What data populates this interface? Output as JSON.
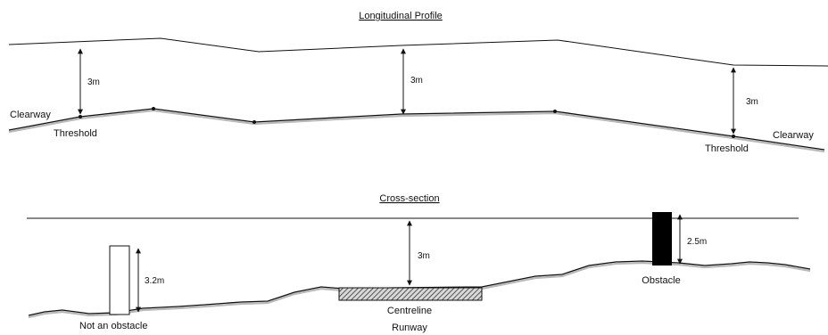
{
  "longitudinal": {
    "title": "Longitudinal Profile",
    "dim_left": "3m",
    "dim_center": "3m",
    "dim_right": "3m",
    "clearway_left": "Clearway",
    "threshold_left": "Threshold",
    "clearway_right": "Clearway",
    "threshold_right": "Threshold"
  },
  "cross_section": {
    "title": "Cross-section",
    "dim_not_obstacle": "3.2m",
    "dim_centre": "3m",
    "dim_obstacle": "2.5m",
    "label_not_obstacle": "Not an obstacle",
    "label_centreline": "Centreline",
    "label_runway": "Runway",
    "label_obstacle": "Obstacle"
  },
  "colors": {
    "ink": "#111111",
    "obstacle_fill": "#000000",
    "runway_hatch": "#333333"
  }
}
